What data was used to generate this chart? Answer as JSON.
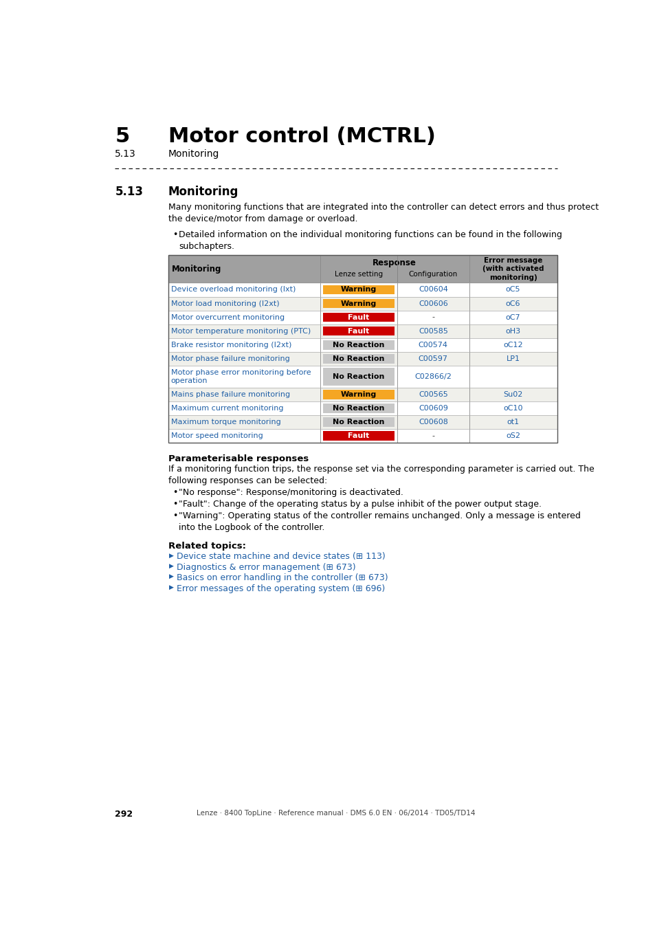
{
  "page_num": "292",
  "footer_text": "Lenze · 8400 TopLine · Reference manual · DMS 6.0 EN · 06/2014 · TD05/TD14",
  "chapter_num": "5",
  "chapter_title": "Motor control (MCTRL)",
  "section_num": "5.13",
  "section_title": "Monitoring",
  "section_heading": "5.13",
  "section_heading_title": "Monitoring",
  "intro_text": "Many monitoring functions that are integrated into the controller can detect errors and thus protect\nthe device/motor from damage or overload.",
  "bullet1": "Detailed information on the individual monitoring functions can be found in the following\nsubchapters.",
  "table_header_col1": "Monitoring",
  "table_header_response": "Response",
  "table_header_lenze": "Lenze setting",
  "table_header_config": "Configuration",
  "table_header_error": "Error message\n(with activated\nmonitoring)",
  "table_rows": [
    {
      "monitoring": "Device overload monitoring (Ixt)",
      "lenze_setting": "Warning",
      "lenze_color": "#F5A623",
      "lenze_text": "#000000",
      "config": "C00604",
      "error": "oC5"
    },
    {
      "monitoring": "Motor load monitoring (I2xt)",
      "lenze_setting": "Warning",
      "lenze_color": "#F5A623",
      "lenze_text": "#000000",
      "config": "C00606",
      "error": "oC6"
    },
    {
      "monitoring": "Motor overcurrent monitoring",
      "lenze_setting": "Fault",
      "lenze_color": "#CC0000",
      "lenze_text": "#FFFFFF",
      "config": "-",
      "error": "oC7"
    },
    {
      "monitoring": "Motor temperature monitoring (PTC)",
      "lenze_setting": "Fault",
      "lenze_color": "#CC0000",
      "lenze_text": "#FFFFFF",
      "config": "C00585",
      "error": "oH3"
    },
    {
      "monitoring": "Brake resistor monitoring (I2xt)",
      "lenze_setting": "No Reaction",
      "lenze_color": "#C8C8C8",
      "lenze_text": "#000000",
      "config": "C00574",
      "error": "oC12"
    },
    {
      "monitoring": "Motor phase failure monitoring",
      "lenze_setting": "No Reaction",
      "lenze_color": "#C8C8C8",
      "lenze_text": "#000000",
      "config": "C00597",
      "error": "LP1"
    },
    {
      "monitoring": "Motor phase error monitoring before\noperation",
      "lenze_setting": "No Reaction",
      "lenze_color": "#C8C8C8",
      "lenze_text": "#000000",
      "config": "C02866/2",
      "error": ""
    },
    {
      "monitoring": "Mains phase failure monitoring",
      "lenze_setting": "Warning",
      "lenze_color": "#F5A623",
      "lenze_text": "#000000",
      "config": "C00565",
      "error": "Su02"
    },
    {
      "monitoring": "Maximum current monitoring",
      "lenze_setting": "No Reaction",
      "lenze_color": "#C8C8C8",
      "lenze_text": "#000000",
      "config": "C00609",
      "error": "oC10"
    },
    {
      "monitoring": "Maximum torque monitoring",
      "lenze_setting": "No Reaction",
      "lenze_color": "#C8C8C8",
      "lenze_text": "#000000",
      "config": "C00608",
      "error": "ot1"
    },
    {
      "monitoring": "Motor speed monitoring",
      "lenze_setting": "Fault",
      "lenze_color": "#CC0000",
      "lenze_text": "#FFFFFF",
      "config": "-",
      "error": "oS2"
    }
  ],
  "param_heading": "Parameterisable responses",
  "param_intro": "If a monitoring function trips, the response set via the corresponding parameter is carried out. The\nfollowing responses can be selected:",
  "param_bullets": [
    "\"No response\": Response/monitoring is deactivated.",
    "\"Fault\": Change of the operating status by a pulse inhibit of the power output stage.",
    "\"Warning\": Operating status of the controller remains unchanged. Only a message is entered\ninto the Logbook of the controller."
  ],
  "related_heading": "Related topics:",
  "related_links": [
    "Device state machine and device states (⊞ 113)",
    "Diagnostics & error management (⊞ 673)",
    "Basics on error handling in the controller (⊞ 673)",
    "Error messages of the operating system (⊞ 696)"
  ],
  "link_color": "#1F5FA6",
  "header_bg": "#A0A0A0",
  "row_bg_even": "#FFFFFF",
  "row_bg_odd": "#F0F0EB"
}
